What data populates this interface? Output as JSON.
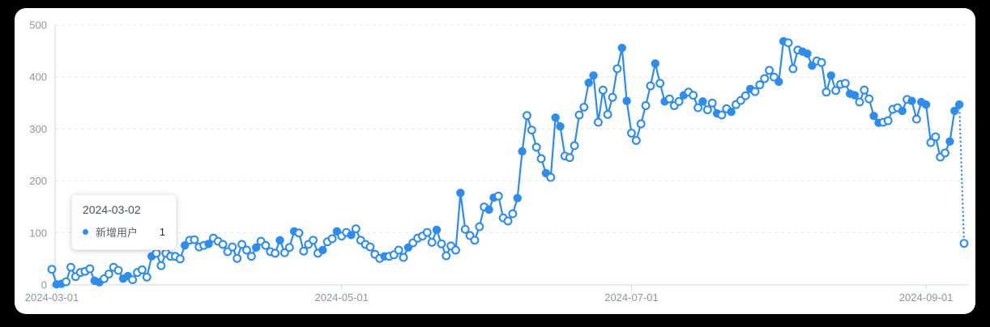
{
  "page": {
    "background": "#000000",
    "card_background": "#ffffff"
  },
  "tooltip": {
    "date": "2024-03-02",
    "series_label": "新增用户",
    "value": "1",
    "marker_color": "#2d8cf0"
  },
  "chart_data": {
    "type": "line",
    "title": "",
    "x_unit": "day",
    "start_date": "2024-03-01",
    "end_date": "2024-09-09",
    "x_tick_labels": [
      "2024-03-01",
      "2024-05-01",
      "2024-07-01",
      "2024-09-01"
    ],
    "x_tick_day_offsets": [
      0,
      61,
      122,
      184
    ],
    "y_ticks": [
      0,
      100,
      200,
      300,
      400,
      500
    ],
    "ylim": [
      0,
      500
    ],
    "grid": "horizontal-dashed",
    "legend_position": "none",
    "line_color": "#2d8cf0",
    "axis_color": "#cfd3d9",
    "grid_color": "#e5e8ec",
    "label_color": "#8f959e",
    "last_segment_dotted": true,
    "series": [
      {
        "name": "新增用户",
        "color": "#2d8cf0",
        "values": [
          30,
          1,
          2,
          6,
          34,
          16,
          24,
          26,
          31,
          8,
          5,
          12,
          21,
          34,
          28,
          12,
          17,
          10,
          24,
          29,
          15,
          55,
          61,
          37,
          61,
          55,
          55,
          50,
          76,
          86,
          87,
          73,
          76,
          79,
          90,
          84,
          78,
          64,
          73,
          51,
          78,
          67,
          55,
          72,
          84,
          76,
          64,
          61,
          86,
          62,
          72,
          103,
          100,
          65,
          78,
          86,
          61,
          67,
          83,
          89,
          103,
          94,
          101,
          96,
          108,
          86,
          78,
          73,
          59,
          51,
          55,
          55,
          58,
          67,
          53,
          72,
          81,
          90,
          94,
          101,
          82,
          106,
          79,
          56,
          75,
          67,
          177,
          107,
          95,
          86,
          112,
          150,
          145,
          168,
          171,
          129,
          123,
          137,
          167,
          257,
          326,
          298,
          265,
          243,
          215,
          207,
          322,
          305,
          248,
          245,
          268,
          327,
          342,
          389,
          403,
          313,
          375,
          328,
          361,
          416,
          456,
          354,
          292,
          278,
          310,
          345,
          383,
          426,
          388,
          353,
          358,
          345,
          353,
          365,
          371,
          365,
          341,
          353,
          337,
          350,
          330,
          327,
          339,
          333,
          347,
          355,
          364,
          377,
          372,
          385,
          397,
          413,
          400,
          391,
          469,
          466,
          416,
          452,
          449,
          445,
          422,
          431,
          428,
          371,
          403,
          374,
          386,
          388,
          368,
          365,
          352,
          375,
          358,
          325,
          312,
          313,
          316,
          338,
          341,
          335,
          357,
          354,
          319,
          352,
          347,
          274,
          285,
          246,
          254,
          276,
          335,
          347,
          80
        ]
      }
    ],
    "filled_marker_indices": [
      1,
      2,
      9,
      10,
      15,
      16,
      21,
      28,
      33,
      43,
      48,
      51,
      57,
      60,
      63,
      70,
      75,
      81,
      86,
      92,
      93,
      98,
      99,
      104,
      106,
      107,
      113,
      114,
      120,
      121,
      127,
      129,
      133,
      137,
      140,
      143,
      147,
      153,
      154,
      158,
      159,
      160,
      164,
      168,
      169,
      173,
      174,
      179,
      181,
      183,
      184,
      189,
      190,
      191
    ]
  }
}
